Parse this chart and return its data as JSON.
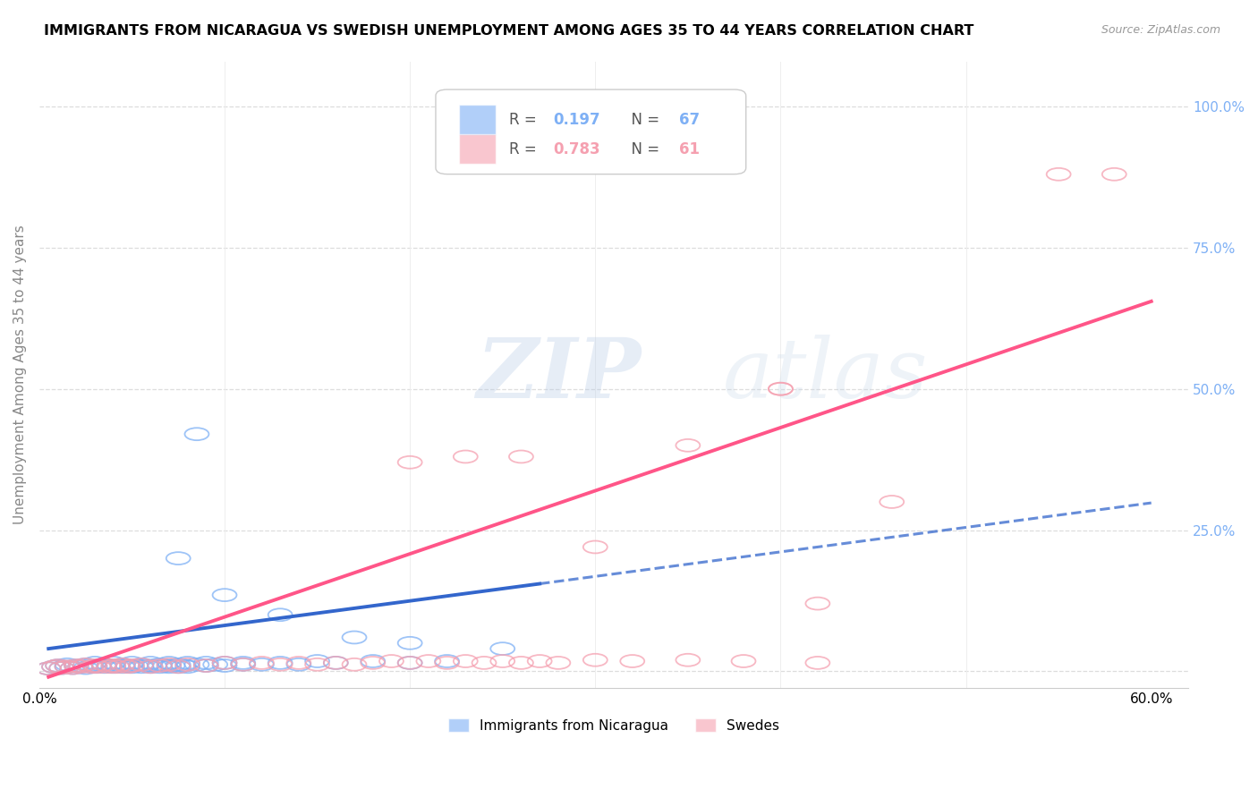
{
  "title": "IMMIGRANTS FROM NICARAGUA VS SWEDISH UNEMPLOYMENT AMONG AGES 35 TO 44 YEARS CORRELATION CHART",
  "source": "Source: ZipAtlas.com",
  "ylabel": "Unemployment Among Ages 35 to 44 years",
  "xlim": [
    0.0,
    0.62
  ],
  "ylim": [
    -0.03,
    1.08
  ],
  "legend_r1": "R = 0.197",
  "legend_n1": "N = 67",
  "legend_r2": "R = 0.783",
  "legend_n2": "N = 61",
  "legend_label1": "Immigrants from Nicaragua",
  "legend_label2": "Swedes",
  "blue_color": "#7EB0F5",
  "pink_color": "#F5A0B0",
  "blue_line_color": "#3366CC",
  "pink_line_color": "#FF5588",
  "watermark": "ZIPatlas",
  "blue_scatter_x": [
    0.005,
    0.008,
    0.01,
    0.012,
    0.015,
    0.015,
    0.018,
    0.02,
    0.022,
    0.025,
    0.025,
    0.028,
    0.03,
    0.03,
    0.032,
    0.035,
    0.035,
    0.038,
    0.04,
    0.04,
    0.042,
    0.045,
    0.045,
    0.048,
    0.05,
    0.05,
    0.052,
    0.055,
    0.055,
    0.058,
    0.06,
    0.06,
    0.062,
    0.065,
    0.065,
    0.068,
    0.07,
    0.07,
    0.072,
    0.075,
    0.075,
    0.078,
    0.08,
    0.08,
    0.085,
    0.09,
    0.09,
    0.095,
    0.1,
    0.1,
    0.11,
    0.11,
    0.12,
    0.13,
    0.14,
    0.15,
    0.16,
    0.18,
    0.2,
    0.22,
    0.075,
    0.085,
    0.1,
    0.13,
    0.17,
    0.2,
    0.25
  ],
  "blue_scatter_y": [
    0.005,
    0.008,
    0.01,
    0.006,
    0.008,
    0.012,
    0.006,
    0.01,
    0.008,
    0.012,
    0.006,
    0.01,
    0.008,
    0.015,
    0.01,
    0.008,
    0.012,
    0.01,
    0.008,
    0.015,
    0.01,
    0.008,
    0.012,
    0.01,
    0.008,
    0.015,
    0.01,
    0.008,
    0.012,
    0.01,
    0.008,
    0.015,
    0.01,
    0.008,
    0.012,
    0.01,
    0.008,
    0.015,
    0.01,
    0.008,
    0.012,
    0.01,
    0.008,
    0.015,
    0.012,
    0.01,
    0.015,
    0.012,
    0.01,
    0.015,
    0.012,
    0.015,
    0.012,
    0.015,
    0.012,
    0.018,
    0.015,
    0.018,
    0.015,
    0.018,
    0.2,
    0.42,
    0.135,
    0.1,
    0.06,
    0.05,
    0.04
  ],
  "pink_scatter_x": [
    0.005,
    0.008,
    0.01,
    0.012,
    0.015,
    0.018,
    0.02,
    0.022,
    0.025,
    0.028,
    0.03,
    0.032,
    0.035,
    0.038,
    0.04,
    0.042,
    0.045,
    0.048,
    0.05,
    0.055,
    0.06,
    0.065,
    0.07,
    0.075,
    0.08,
    0.09,
    0.1,
    0.11,
    0.12,
    0.13,
    0.14,
    0.15,
    0.16,
    0.17,
    0.18,
    0.19,
    0.2,
    0.21,
    0.22,
    0.23,
    0.24,
    0.25,
    0.26,
    0.27,
    0.28,
    0.3,
    0.32,
    0.35,
    0.38,
    0.4,
    0.42,
    0.2,
    0.23,
    0.26,
    0.3,
    0.35,
    0.4,
    0.46,
    0.55,
    0.58,
    0.42
  ],
  "pink_scatter_y": [
    0.005,
    0.008,
    0.01,
    0.006,
    0.008,
    0.006,
    0.01,
    0.008,
    0.012,
    0.008,
    0.01,
    0.008,
    0.012,
    0.008,
    0.01,
    0.008,
    0.012,
    0.008,
    0.01,
    0.012,
    0.008,
    0.01,
    0.012,
    0.008,
    0.012,
    0.01,
    0.015,
    0.012,
    0.015,
    0.012,
    0.015,
    0.012,
    0.015,
    0.012,
    0.015,
    0.018,
    0.015,
    0.018,
    0.015,
    0.018,
    0.015,
    0.018,
    0.015,
    0.018,
    0.015,
    0.02,
    0.018,
    0.02,
    0.018,
    0.5,
    0.015,
    0.37,
    0.38,
    0.38,
    0.22,
    0.4,
    0.5,
    0.3,
    0.88,
    0.88,
    0.12
  ]
}
